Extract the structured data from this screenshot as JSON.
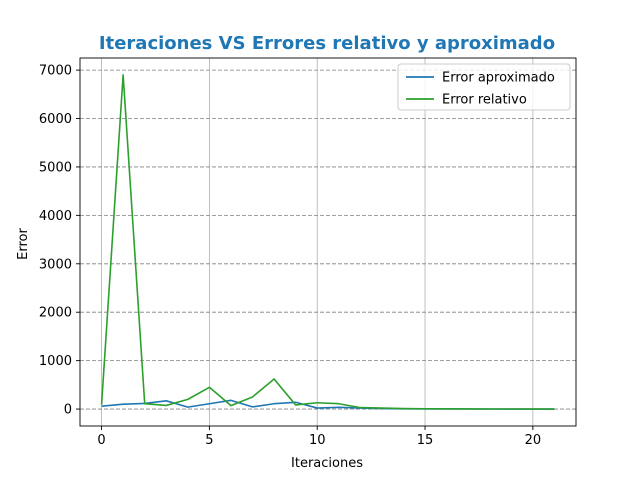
{
  "chart_data": {
    "type": "line",
    "title": "Iteraciones VS Errores relativo y aproximado",
    "xlabel": "Iteraciones",
    "ylabel": "Error",
    "xlim": [
      -1,
      22
    ],
    "ylim": [
      -350,
      7250
    ],
    "xticks": [
      0,
      5,
      10,
      15,
      20
    ],
    "yticks": [
      0,
      1000,
      2000,
      3000,
      4000,
      5000,
      6000,
      7000
    ],
    "legend_position": "upper-right",
    "vertical_grid": "solid gray",
    "horizontal_grid": "dashed gray",
    "x": [
      0,
      1,
      2,
      3,
      4,
      5,
      6,
      7,
      8,
      9,
      10,
      11,
      12,
      13,
      14,
      15,
      16,
      17,
      18,
      19,
      20,
      21
    ],
    "series": [
      {
        "name": "Error aproximado",
        "color": "#1f77b4",
        "values": [
          60,
          100,
          115,
          170,
          40,
          110,
          180,
          45,
          110,
          140,
          20,
          35,
          20,
          10,
          5,
          3,
          2,
          1,
          1,
          0,
          0,
          0
        ]
      },
      {
        "name": "Error relativo",
        "color": "#2ca02c",
        "values": [
          90,
          6900,
          110,
          75,
          200,
          450,
          70,
          250,
          620,
          85,
          130,
          110,
          30,
          20,
          10,
          6,
          4,
          2,
          1,
          1,
          0,
          0
        ]
      }
    ]
  }
}
